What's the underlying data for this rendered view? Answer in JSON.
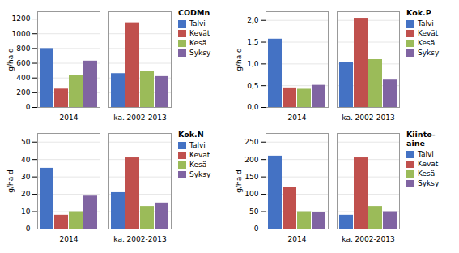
{
  "chart_data": [
    {
      "type": "bar",
      "title": "CODMn",
      "ylabel": "g/ha d",
      "categories": [
        "2014",
        "ka. 2002-2013"
      ],
      "series": [
        {
          "name": "Talvi",
          "color": "#4472C4",
          "values": [
            800,
            460
          ]
        },
        {
          "name": "Kevät",
          "color": "#C0504D",
          "values": [
            250,
            1150
          ]
        },
        {
          "name": "Kesä",
          "color": "#9BBB59",
          "values": [
            440,
            490
          ]
        },
        {
          "name": "Syksy",
          "color": "#8064A2",
          "values": [
            630,
            420
          ]
        }
      ],
      "ylim": [
        0,
        1300
      ],
      "yticks": [
        0,
        200,
        400,
        600,
        800,
        1000,
        1200
      ],
      "grid": true,
      "legend": "right"
    },
    {
      "type": "bar",
      "title": "Kok.P",
      "ylabel": "g/ha d",
      "categories": [
        "2014",
        "ka. 2002-2013"
      ],
      "series": [
        {
          "name": "Talvi",
          "color": "#4472C4",
          "values": [
            1.57,
            1.03
          ]
        },
        {
          "name": "Kevät",
          "color": "#C0504D",
          "values": [
            0.45,
            2.05
          ]
        },
        {
          "name": "Kesä",
          "color": "#9BBB59",
          "values": [
            0.42,
            1.1
          ]
        },
        {
          "name": "Syksy",
          "color": "#8064A2",
          "values": [
            0.51,
            0.63
          ]
        }
      ],
      "ylim": [
        0,
        2.2
      ],
      "yticks": [
        {
          "value": 0.0,
          "label": "0,0"
        },
        {
          "value": 0.5,
          "label": "0,5"
        },
        {
          "value": 1.0,
          "label": "1,0"
        },
        {
          "value": 1.5,
          "label": "1,5"
        },
        {
          "value": 2.0,
          "label": "2,0"
        }
      ],
      "grid": true,
      "legend": "right"
    },
    {
      "type": "bar",
      "title": "Kok.N",
      "ylabel": "g/ha d",
      "categories": [
        "2014",
        "ka. 2002-2013"
      ],
      "series": [
        {
          "name": "Talvi",
          "color": "#4472C4",
          "values": [
            35,
            21
          ]
        },
        {
          "name": "Kevät",
          "color": "#C0504D",
          "values": [
            8,
            41
          ]
        },
        {
          "name": "Kesä",
          "color": "#9BBB59",
          "values": [
            10,
            13
          ]
        },
        {
          "name": "Syksy",
          "color": "#8064A2",
          "values": [
            19,
            15
          ]
        }
      ],
      "ylim": [
        0,
        55
      ],
      "yticks": [
        0,
        10,
        20,
        30,
        40,
        50
      ],
      "grid": true,
      "legend": "right"
    },
    {
      "type": "bar",
      "title": "Kiinto-\naine",
      "ylabel": "g/ha d",
      "categories": [
        "2014",
        "ka. 2002-2013"
      ],
      "series": [
        {
          "name": "Talvi",
          "color": "#4472C4",
          "values": [
            210,
            40
          ]
        },
        {
          "name": "Kevät",
          "color": "#C0504D",
          "values": [
            120,
            205
          ]
        },
        {
          "name": "Kesä",
          "color": "#9BBB59",
          "values": [
            50,
            65
          ]
        },
        {
          "name": "Syksy",
          "color": "#8064A2",
          "values": [
            48,
            50
          ]
        }
      ],
      "ylim": [
        0,
        275
      ],
      "yticks": [
        0,
        50,
        100,
        150,
        200,
        250
      ],
      "grid": true,
      "legend": "right"
    }
  ]
}
